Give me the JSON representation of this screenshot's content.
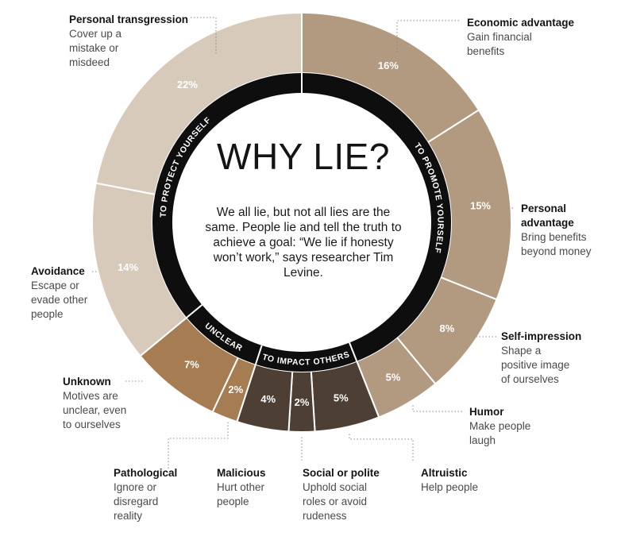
{
  "center": {
    "title": "WHY LIE?",
    "text": "We all lie, but not all lies are the same. People lie and tell the truth to achieve a goal: “We lie if honesty won’t work,” says researcher Tim Levine."
  },
  "colors": {
    "protect": "#d8cabb",
    "promote": "#b29a80",
    "unclear": "#a67c52",
    "impact": "#4e3f35",
    "ring": "#0e0e0e"
  },
  "chart_data": {
    "type": "pie",
    "slices": [
      {
        "name": "Economic advantage",
        "value": 16,
        "label": "16%",
        "group": "promote"
      },
      {
        "name": "Personal advantage",
        "value": 15,
        "label": "15%",
        "group": "promote"
      },
      {
        "name": "Self-impression",
        "value": 8,
        "label": "8%",
        "group": "promote"
      },
      {
        "name": "Humor",
        "value": 5,
        "label": "5%",
        "group": "promote"
      },
      {
        "name": "Altruistic",
        "value": 5,
        "label": "5%",
        "group": "impact"
      },
      {
        "name": "Social or polite",
        "value": 2,
        "label": "2%",
        "group": "impact"
      },
      {
        "name": "Malicious",
        "value": 4,
        "label": "4%",
        "group": "impact"
      },
      {
        "name": "Pathological",
        "value": 2,
        "label": "2%",
        "group": "unclear"
      },
      {
        "name": "Unknown",
        "value": 7,
        "label": "7%",
        "group": "unclear"
      },
      {
        "name": "Avoidance",
        "value": 14,
        "label": "14%",
        "group": "protect"
      },
      {
        "name": "Personal transgression",
        "value": 22,
        "label": "22%",
        "group": "protect"
      }
    ],
    "groups": [
      {
        "key": "promote",
        "label": "TO PROMOTE YOURSELF"
      },
      {
        "key": "impact",
        "label": "TO IMPACT OTHERS"
      },
      {
        "key": "unclear",
        "label": "UNCLEAR"
      },
      {
        "key": "protect",
        "label": "TO PROTECT YOURSELF"
      }
    ]
  },
  "annotations": [
    {
      "title": "Personal transgression",
      "desc": "Cover up a\nmistake or\nmisdeed"
    },
    {
      "title": "Economic advantage",
      "desc": "Gain financial\nbenefits"
    },
    {
      "title": "Personal advantage",
      "desc": "Bring benefits\nbeyond money"
    },
    {
      "title": "Avoidance",
      "desc": "Escape or\nevade other\npeople"
    },
    {
      "title": "Self-impression",
      "desc": "Shape a\npositive image\nof ourselves"
    },
    {
      "title": "Unknown",
      "desc": "Motives are\nunclear, even\nto ourselves"
    },
    {
      "title": "Humor",
      "desc": "Make people\nlaugh"
    },
    {
      "title": "Pathological",
      "desc": "Ignore or\ndisregard\nreality"
    },
    {
      "title": "Malicious",
      "desc": "Hurt other\npeople"
    },
    {
      "title": "Social or polite",
      "desc": "Uphold social\nroles or avoid\nrudeness"
    },
    {
      "title": "Altruistic",
      "desc": "Help people"
    }
  ]
}
